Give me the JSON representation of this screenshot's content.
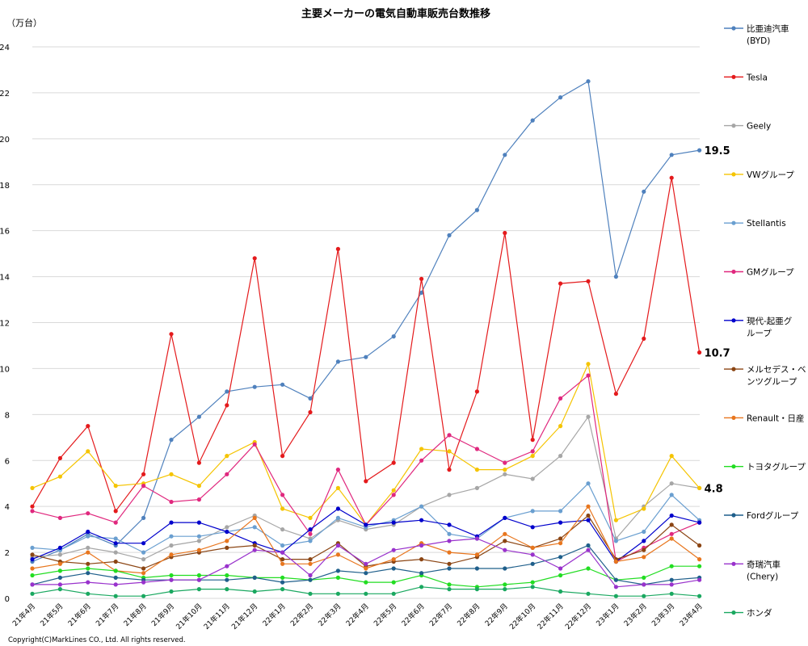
{
  "chart_data": {
    "type": "line",
    "title": "主要メーカーの電気自動車販売台数推移",
    "ylabel": "（万台）",
    "copyright": "Copyright(C)MarkLines CO., Ltd. All rights reserved.",
    "ylim": [
      0,
      24
    ],
    "yticks": [
      0,
      2,
      4,
      6,
      8,
      10,
      12,
      14,
      16,
      18,
      20,
      22,
      24
    ],
    "grid": true,
    "legend_position": "right",
    "categories": [
      "21年4月",
      "21年5月",
      "21年6月",
      "21年7月",
      "21年8月",
      "21年9月",
      "21年10月",
      "21年11月",
      "21年12月",
      "22年1月",
      "22年2月",
      "22年3月",
      "22年4月",
      "22年5月",
      "22年6月",
      "22年7月",
      "22年8月",
      "22年9月",
      "22年10月",
      "22年11月",
      "22年12月",
      "23年1月",
      "23年2月",
      "23年3月",
      "23年4月"
    ],
    "series": [
      {
        "name": "比亜迪汽車(BYD)",
        "legend_lines": [
          "比亜迪汽車",
          "(BYD)"
        ],
        "color": "#4f81bd",
        "values": [
          1.6,
          2.1,
          2.8,
          2.3,
          3.5,
          6.9,
          7.9,
          9.0,
          9.2,
          9.3,
          8.7,
          10.3,
          10.5,
          11.4,
          13.3,
          15.8,
          16.9,
          19.3,
          20.8,
          21.8,
          22.5,
          14.0,
          17.7,
          19.3,
          19.5
        ]
      },
      {
        "name": "Tesla",
        "legend_lines": [
          "Tesla"
        ],
        "color": "#e41a1c",
        "values": [
          4.0,
          6.1,
          7.5,
          3.8,
          5.4,
          11.5,
          5.9,
          8.4,
          14.8,
          6.2,
          8.1,
          15.2,
          5.1,
          5.9,
          13.9,
          5.6,
          9.0,
          15.9,
          6.9,
          13.7,
          13.8,
          8.9,
          11.3,
          18.3,
          10.7
        ]
      },
      {
        "name": "Geely",
        "legend_lines": [
          "Geely"
        ],
        "color": "#a6a6a6",
        "values": [
          1.8,
          1.9,
          2.2,
          2.0,
          1.7,
          2.3,
          2.5,
          3.1,
          3.6,
          3.0,
          2.6,
          3.4,
          3.0,
          3.2,
          4.0,
          4.5,
          4.8,
          5.4,
          5.2,
          6.2,
          7.9,
          2.6,
          4.0,
          5.0,
          4.8
        ]
      },
      {
        "name": "VWグループ",
        "legend_lines": [
          "VWグループ"
        ],
        "color": "#f5c400",
        "values": [
          4.8,
          5.3,
          6.4,
          4.9,
          5.0,
          5.4,
          4.9,
          6.2,
          6.8,
          3.9,
          3.5,
          4.8,
          3.2,
          4.7,
          6.5,
          6.4,
          5.6,
          5.6,
          6.2,
          7.5,
          10.2,
          3.4,
          3.9,
          6.2,
          4.8
        ]
      },
      {
        "name": "Stellantis",
        "legend_lines": [
          "Stellantis"
        ],
        "color": "#6a9fd0",
        "values": [
          2.2,
          2.1,
          2.7,
          2.6,
          2.0,
          2.7,
          2.7,
          2.9,
          3.1,
          2.3,
          2.5,
          3.5,
          3.1,
          3.4,
          4.0,
          2.8,
          2.6,
          3.5,
          3.8,
          3.8,
          5.0,
          2.5,
          2.9,
          4.5,
          3.4
        ]
      },
      {
        "name": "GMグループ",
        "legend_lines": [
          "GMグループ"
        ],
        "color": "#e0287e",
        "values": [
          3.8,
          3.5,
          3.7,
          3.3,
          4.9,
          4.2,
          4.3,
          5.4,
          6.7,
          4.5,
          2.8,
          5.6,
          3.2,
          4.5,
          6.0,
          7.1,
          6.5,
          5.9,
          6.4,
          8.7,
          9.7,
          1.6,
          2.2,
          2.8,
          3.3
        ]
      },
      {
        "name": "現代-起亜グループ",
        "legend_lines": [
          "現代-起亜グ",
          "ループ"
        ],
        "color": "#0000cc",
        "values": [
          1.7,
          2.2,
          2.9,
          2.4,
          2.4,
          3.3,
          3.3,
          2.9,
          2.4,
          2.0,
          3.0,
          3.9,
          3.2,
          3.3,
          3.4,
          3.2,
          2.7,
          3.5,
          3.1,
          3.3,
          3.4,
          1.6,
          2.5,
          3.6,
          3.3
        ]
      },
      {
        "name": "メルセデス・ベンツグループ",
        "legend_lines": [
          "メルセデス・ベ",
          "ンツグループ"
        ],
        "color": "#8b4513",
        "values": [
          1.9,
          1.6,
          1.5,
          1.6,
          1.3,
          1.8,
          2.0,
          2.2,
          2.3,
          1.7,
          1.7,
          2.4,
          1.4,
          1.6,
          1.7,
          1.5,
          1.8,
          2.5,
          2.2,
          2.6,
          3.6,
          1.7,
          2.1,
          3.2,
          2.3
        ]
      },
      {
        "name": "Renault・日産",
        "legend_lines": [
          "Renault・日産"
        ],
        "color": "#e8761e",
        "values": [
          1.3,
          1.5,
          2.0,
          1.2,
          1.1,
          1.9,
          2.1,
          2.5,
          3.5,
          1.5,
          1.5,
          1.9,
          1.3,
          1.7,
          2.4,
          2.0,
          1.9,
          2.8,
          2.2,
          2.4,
          4.0,
          1.6,
          1.8,
          2.6,
          1.7
        ]
      },
      {
        "name": "トヨタグループ",
        "legend_lines": [
          "トヨタグループ"
        ],
        "color": "#22dd22",
        "values": [
          1.0,
          1.2,
          1.3,
          1.2,
          0.9,
          1.0,
          1.0,
          1.0,
          0.9,
          0.9,
          0.8,
          0.9,
          0.7,
          0.7,
          1.0,
          0.6,
          0.5,
          0.6,
          0.7,
          1.0,
          1.3,
          0.8,
          0.9,
          1.4,
          1.4
        ]
      },
      {
        "name": "Fordグループ",
        "legend_lines": [
          "Fordグループ"
        ],
        "color": "#1f5f8b",
        "values": [
          0.6,
          0.9,
          1.1,
          0.9,
          0.8,
          0.8,
          0.8,
          0.8,
          0.9,
          0.7,
          0.8,
          1.2,
          1.1,
          1.3,
          1.1,
          1.3,
          1.3,
          1.3,
          1.5,
          1.8,
          2.3,
          0.8,
          0.6,
          0.8,
          0.9
        ]
      },
      {
        "name": "奇瑞汽車(Chery)",
        "legend_lines": [
          "奇瑞汽車",
          "(Chery)"
        ],
        "color": "#9932cc",
        "values": [
          0.6,
          0.6,
          0.7,
          0.6,
          0.7,
          0.8,
          0.8,
          1.4,
          2.1,
          2.0,
          1.0,
          2.3,
          1.5,
          2.1,
          2.3,
          2.5,
          2.6,
          2.1,
          1.9,
          1.3,
          2.1,
          0.5,
          0.6,
          0.6,
          0.8
        ]
      },
      {
        "name": "ホンダ",
        "legend_lines": [
          "ホンダ"
        ],
        "color": "#1aa860",
        "values": [
          0.2,
          0.4,
          0.2,
          0.1,
          0.1,
          0.3,
          0.4,
          0.4,
          0.3,
          0.4,
          0.2,
          0.2,
          0.2,
          0.2,
          0.5,
          0.4,
          0.4,
          0.4,
          0.5,
          0.3,
          0.2,
          0.1,
          0.1,
          0.2,
          0.1
        ]
      }
    ],
    "annotations": [
      {
        "series": "比亜迪汽車(BYD)",
        "category": "23年4月",
        "text": "19.5"
      },
      {
        "series": "Tesla",
        "category": "23年4月",
        "text": "10.7"
      },
      {
        "series": "VWグループ",
        "category": "23年4月",
        "text": "4.8"
      }
    ]
  }
}
